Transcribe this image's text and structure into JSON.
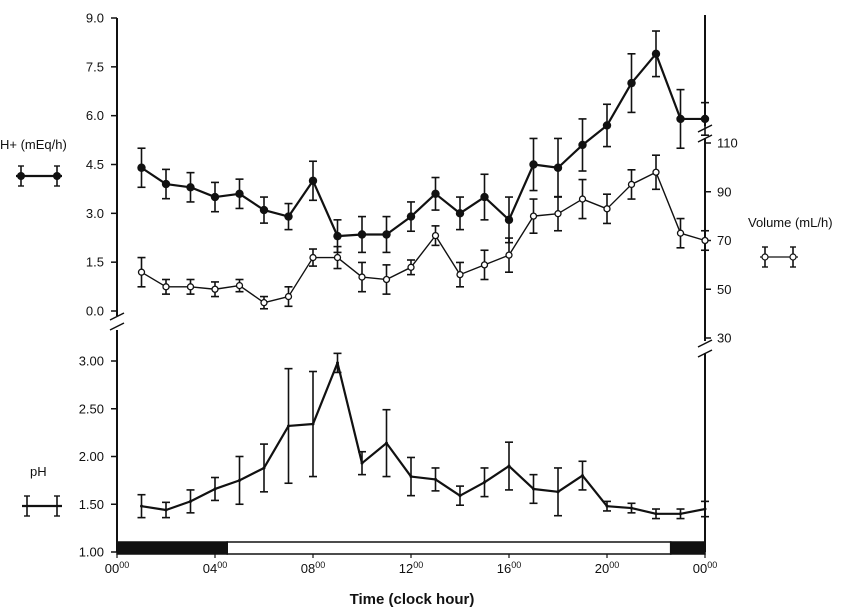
{
  "chart_data": {
    "type": "line",
    "x_tick_labels": [
      {
        "base": "00",
        "sup": "00",
        "hour": 0
      },
      {
        "base": "04",
        "sup": "00",
        "hour": 4
      },
      {
        "base": "08",
        "sup": "00",
        "hour": 8
      },
      {
        "base": "12",
        "sup": "00",
        "hour": 12
      },
      {
        "base": "16",
        "sup": "00",
        "hour": 16
      },
      {
        "base": "20",
        "sup": "00",
        "hour": 20
      },
      {
        "base": "00",
        "sup": "00",
        "hour": 24
      }
    ],
    "xlabel": "Time (clock hour)",
    "xlim": [
      0,
      24
    ],
    "x": [
      1,
      2,
      3,
      4,
      5,
      6,
      7,
      8,
      9,
      10,
      11,
      12,
      13,
      14,
      15,
      16,
      17,
      18,
      19,
      20,
      21,
      22,
      23,
      24
    ],
    "upper_left_axis": {
      "label": "H+ (mEq/h)",
      "range": [
        0,
        9
      ],
      "ticks": [
        "0.0",
        "1.5",
        "3.0",
        "4.5",
        "6.0",
        "7.5",
        "9.0"
      ]
    },
    "upper_right_axis": {
      "label": "Volume (mL/h)",
      "range": [
        30,
        110
      ],
      "ticks": [
        "30",
        "50",
        "70",
        "90",
        "110"
      ]
    },
    "lower_left_axis": {
      "label": "pH",
      "range": [
        1.0,
        3.0
      ],
      "ticks": [
        "1.00",
        "1.50",
        "2.00",
        "2.50",
        "3.00"
      ]
    },
    "series": [
      {
        "id": "h_plus",
        "axis": "upper_left",
        "marker": "filled-circle",
        "values": [
          4.4,
          3.9,
          3.8,
          3.5,
          3.6,
          3.1,
          2.9,
          4.0,
          2.3,
          2.35,
          2.35,
          2.9,
          3.6,
          3.0,
          3.5,
          2.8,
          4.5,
          4.4,
          5.1,
          5.7,
          7.0,
          7.9,
          5.9,
          5.9
        ],
        "errors": [
          0.6,
          0.45,
          0.45,
          0.45,
          0.45,
          0.4,
          0.4,
          0.6,
          0.5,
          0.55,
          0.55,
          0.45,
          0.5,
          0.5,
          0.7,
          0.7,
          0.8,
          0.9,
          0.8,
          0.65,
          0.9,
          0.7,
          0.9,
          0.5
        ]
      },
      {
        "id": "volume",
        "axis": "upper_right",
        "marker": "open-circle",
        "values": [
          57,
          51,
          51,
          50,
          51.5,
          44.5,
          47,
          63,
          63,
          55,
          54,
          59,
          72,
          56,
          60,
          64,
          80,
          81,
          87,
          83,
          93,
          98,
          73,
          70
        ],
        "errors": [
          6,
          3,
          3,
          3,
          2.5,
          2.5,
          4,
          3.5,
          4.5,
          6,
          6,
          3,
          4,
          5,
          6,
          7,
          7,
          7,
          8,
          6,
          6,
          7,
          6,
          4
        ]
      },
      {
        "id": "ph",
        "axis": "lower_left",
        "marker": "none",
        "values": [
          1.48,
          1.44,
          1.53,
          1.66,
          1.75,
          1.88,
          2.32,
          2.34,
          2.98,
          1.93,
          2.14,
          1.79,
          1.76,
          1.59,
          1.73,
          1.9,
          1.66,
          1.63,
          1.8,
          1.48,
          1.46,
          1.4,
          1.4,
          1.45
        ],
        "errors": [
          0.12,
          0.08,
          0.12,
          0.12,
          0.25,
          0.25,
          0.6,
          0.55,
          0.1,
          0.12,
          0.35,
          0.2,
          0.12,
          0.1,
          0.15,
          0.25,
          0.15,
          0.25,
          0.15,
          0.05,
          0.05,
          0.05,
          0.05,
          0.08
        ]
      }
    ],
    "light_dark_bar": [
      {
        "from": 0,
        "to": 4.5,
        "fill": "dark"
      },
      {
        "from": 4.5,
        "to": 22.6,
        "fill": "light"
      },
      {
        "from": 22.6,
        "to": 24,
        "fill": "dark"
      }
    ],
    "grid": false,
    "colors": {
      "line": "#111111",
      "background": "#ffffff"
    }
  }
}
